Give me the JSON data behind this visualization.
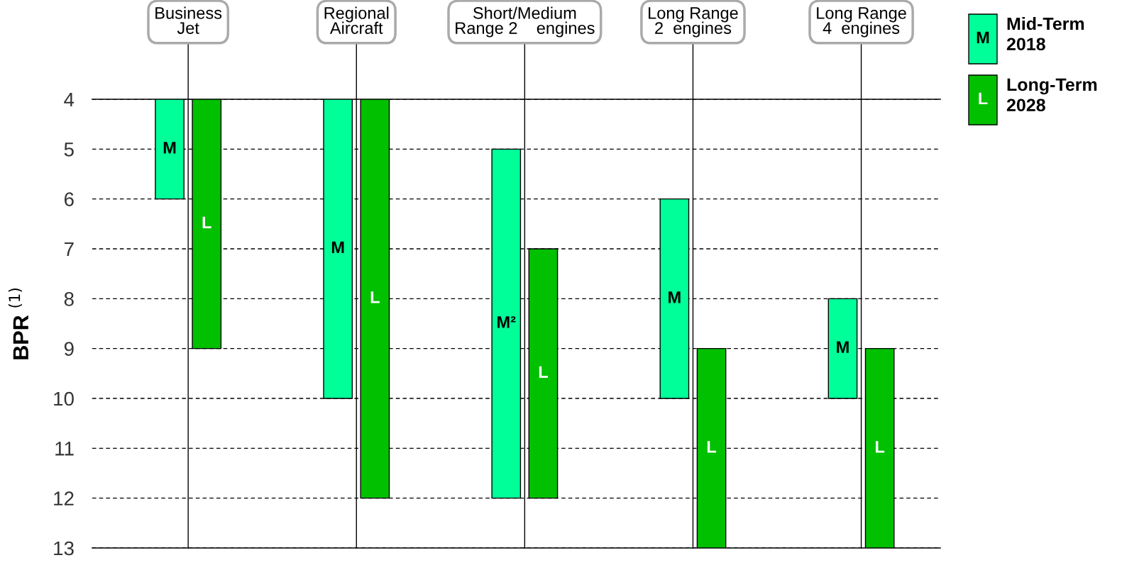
{
  "chart_data": {
    "type": "bar",
    "ylabel": "BPR $^{(1)}$",
    "categories": [
      "Business\nJet",
      "Regional\nAircraft",
      "Short/Medium\nRange 2    engines",
      "Long Range\n2  engines",
      "Long Range\n4  engines"
    ],
    "series": [
      {
        "name": "Mid-Term\n2018",
        "color": "#00ff99",
        "base": [
          4,
          4,
          5,
          6,
          8
        ],
        "values": [
          2,
          6,
          7,
          4,
          2
        ],
        "value_labels": [
          "M",
          "M",
          "M²",
          "M",
          "M"
        ]
      },
      {
        "name": "Long-Term\n2028",
        "color": "#00c000",
        "base": [
          4,
          4,
          7,
          9,
          9
        ],
        "values": [
          5,
          8,
          5,
          4,
          4
        ],
        "value_labels": [
          "L",
          "L",
          "L",
          "L",
          "L"
        ]
      }
    ],
    "ylim": [
      13,
      4
    ],
    "yticks": [
      4,
      5,
      6,
      7,
      8,
      9,
      10,
      11,
      12,
      13
    ],
    "grid": true,
    "legend": "top right"
  }
}
